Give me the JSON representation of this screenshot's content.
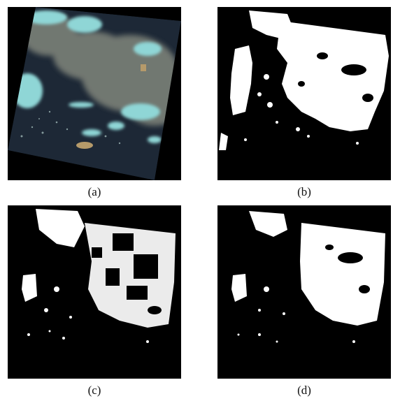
{
  "figure": {
    "panels": [
      {
        "id": "a",
        "caption": "(a)",
        "kind": "true-color satellite scene"
      },
      {
        "id": "b",
        "caption": "(b)",
        "kind": "binary cloud mask"
      },
      {
        "id": "c",
        "caption": "(c)",
        "kind": "binary cloud mask"
      },
      {
        "id": "d",
        "caption": "(d)",
        "kind": "binary cloud mask"
      }
    ],
    "colors": {
      "background": "#000000",
      "ocean": "#1d2836",
      "cloud_cyan": "#8fd6d6",
      "cloud_gray": "#8a8f8a",
      "mask": "#ffffff",
      "land": "#b59a6a"
    }
  }
}
